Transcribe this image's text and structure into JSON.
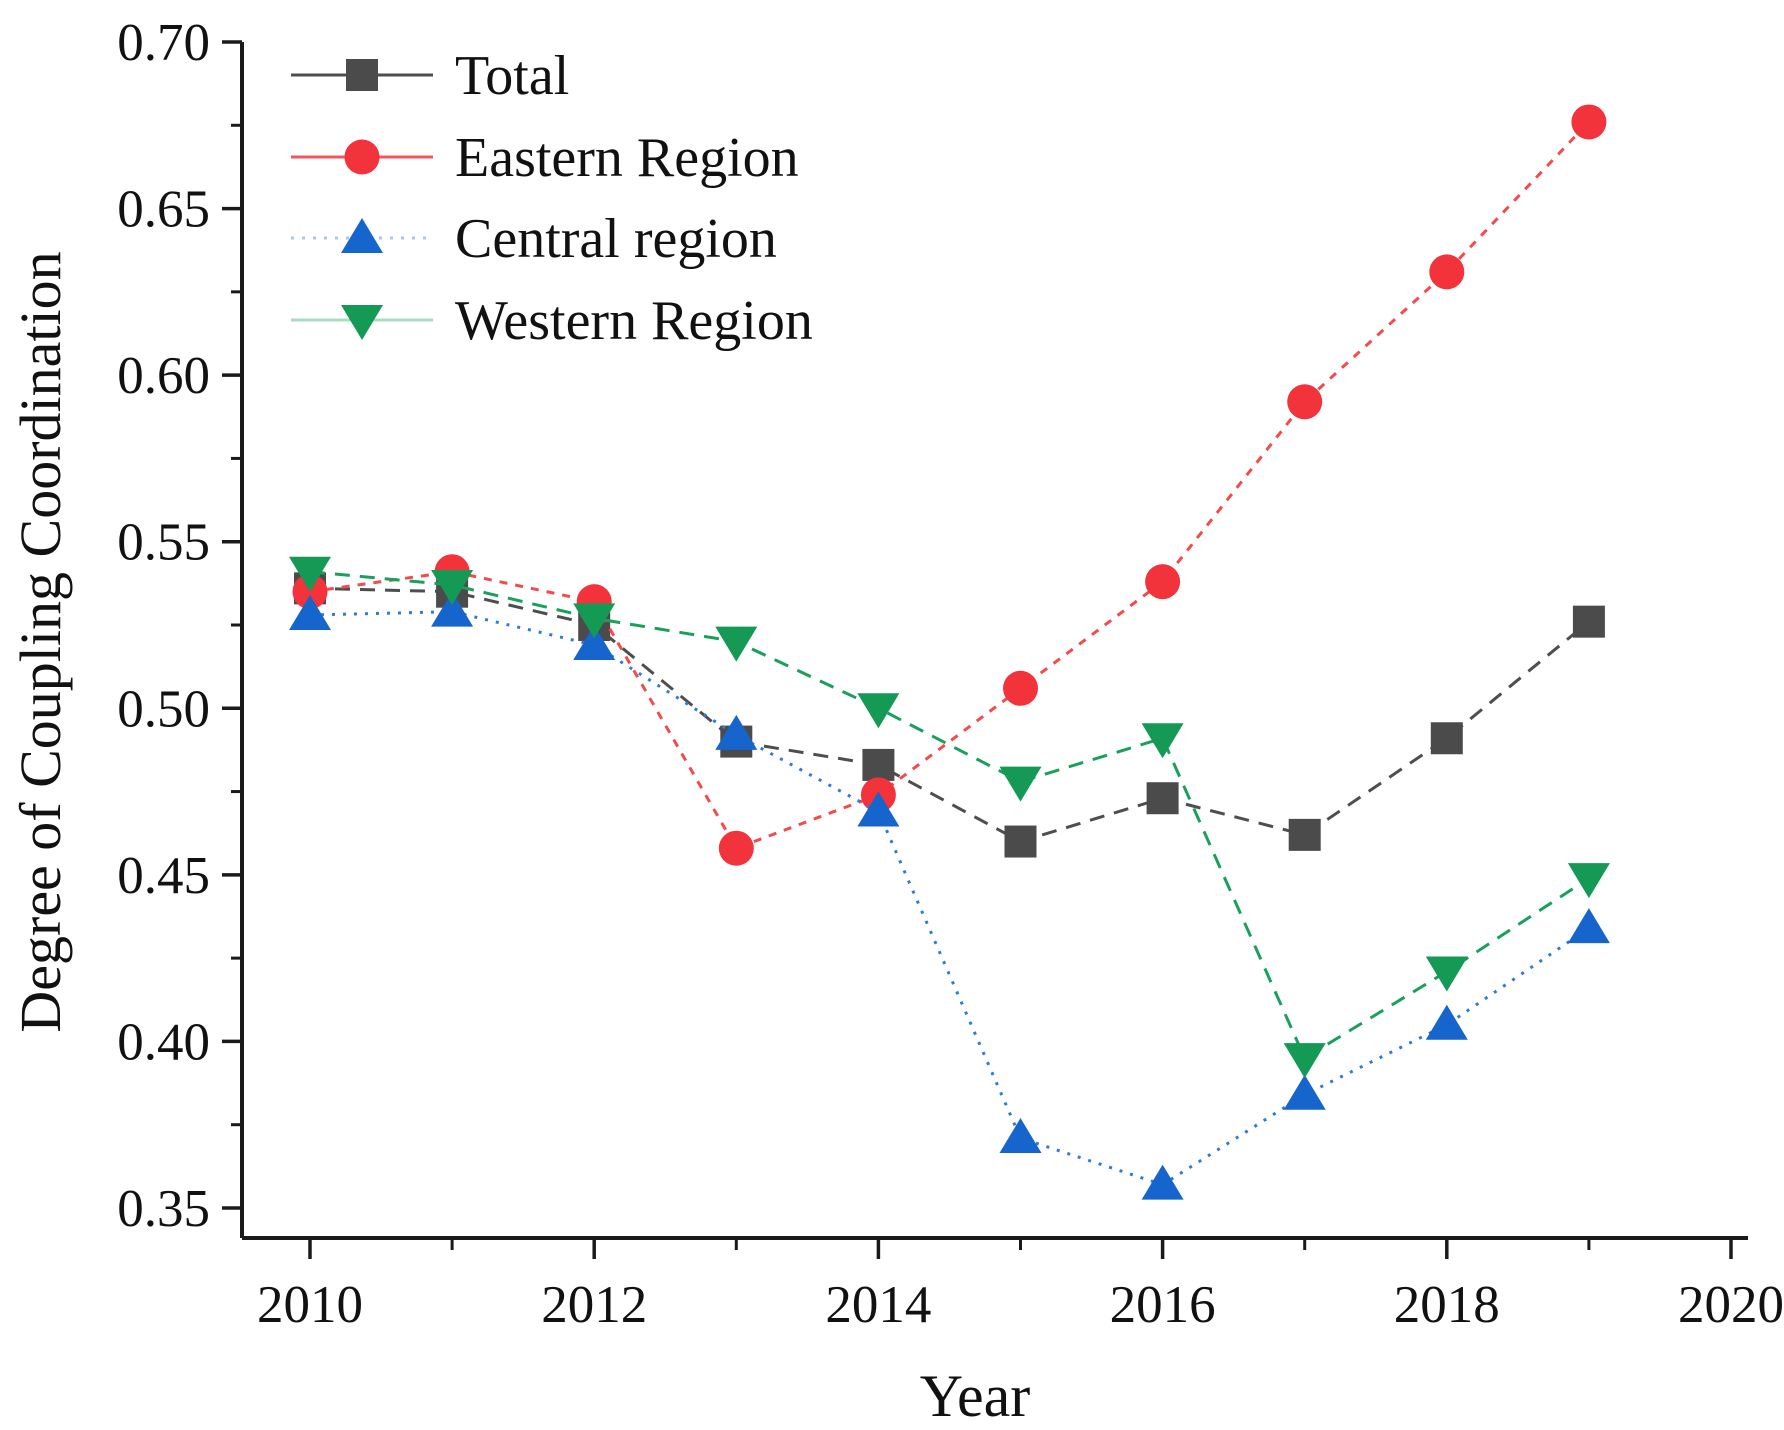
{
  "figure": {
    "background": "#ffffff",
    "axis_color": "#1a1a1a"
  },
  "chart_data": {
    "type": "line",
    "title": "",
    "xlabel": "Year",
    "ylabel": "Degree of Coupling Coordination",
    "x": [
      2010,
      2011,
      2012,
      2013,
      2014,
      2015,
      2016,
      2017,
      2018,
      2019
    ],
    "series": [
      {
        "name": "Total",
        "color": "#4b4b4b",
        "line_color": "#4e4e4e",
        "legend_line": "#4e4e4e",
        "marker": "square",
        "line_style": "dash",
        "values": [
          0.536,
          0.535,
          0.525,
          0.49,
          0.483,
          0.46,
          0.473,
          0.462,
          0.491,
          0.526
        ]
      },
      {
        "name": "Eastern Region",
        "color": "#f2333b",
        "line_color": "#f54a4a",
        "legend_line": "#f2555a",
        "marker": "circle",
        "line_style": "short-dash",
        "values": [
          0.535,
          0.541,
          0.532,
          0.458,
          0.474,
          0.506,
          0.538,
          0.592,
          0.631,
          0.676
        ]
      },
      {
        "name": "Central region",
        "color": "#1565cd",
        "line_color": "#2f7bd8",
        "legend_line": "#a6cbe9",
        "marker": "triangle-up",
        "line_style": "dot",
        "values": [
          0.528,
          0.529,
          0.519,
          0.492,
          0.469,
          0.371,
          0.357,
          0.384,
          0.405,
          0.434
        ]
      },
      {
        "name": "Western Region",
        "color": "#149a54",
        "line_color": "#1aa05c",
        "legend_line": "#a9dcc3",
        "marker": "triangle-down",
        "line_style": "dash",
        "values": [
          0.541,
          0.537,
          0.527,
          0.52,
          0.5,
          0.478,
          0.491,
          0.395,
          0.421,
          0.449
        ]
      }
    ],
    "xlim": [
      2009.52,
      2020.12
    ],
    "ylim": [
      0.341,
      0.7
    ],
    "x_major_ticks": [
      2010,
      2012,
      2014,
      2016,
      2018,
      2020
    ],
    "x_major_tick_labels": [
      "2010",
      "2012",
      "2014",
      "2016",
      "2018",
      "2020"
    ],
    "x_minor_ticks": [
      2011,
      2013,
      2015,
      2017,
      2019
    ],
    "y_major_ticks": [
      0.35,
      0.4,
      0.45,
      0.5,
      0.55,
      0.6,
      0.65,
      0.7
    ],
    "y_major_tick_labels": [
      "0.35",
      "0.40",
      "0.45",
      "0.50",
      "0.55",
      "0.60",
      "0.65",
      "0.70"
    ],
    "y_minor_ticks": [
      0.375,
      0.425,
      0.475,
      0.525,
      0.575,
      0.625,
      0.675
    ],
    "grid": false,
    "legend_position": "top-left"
  }
}
